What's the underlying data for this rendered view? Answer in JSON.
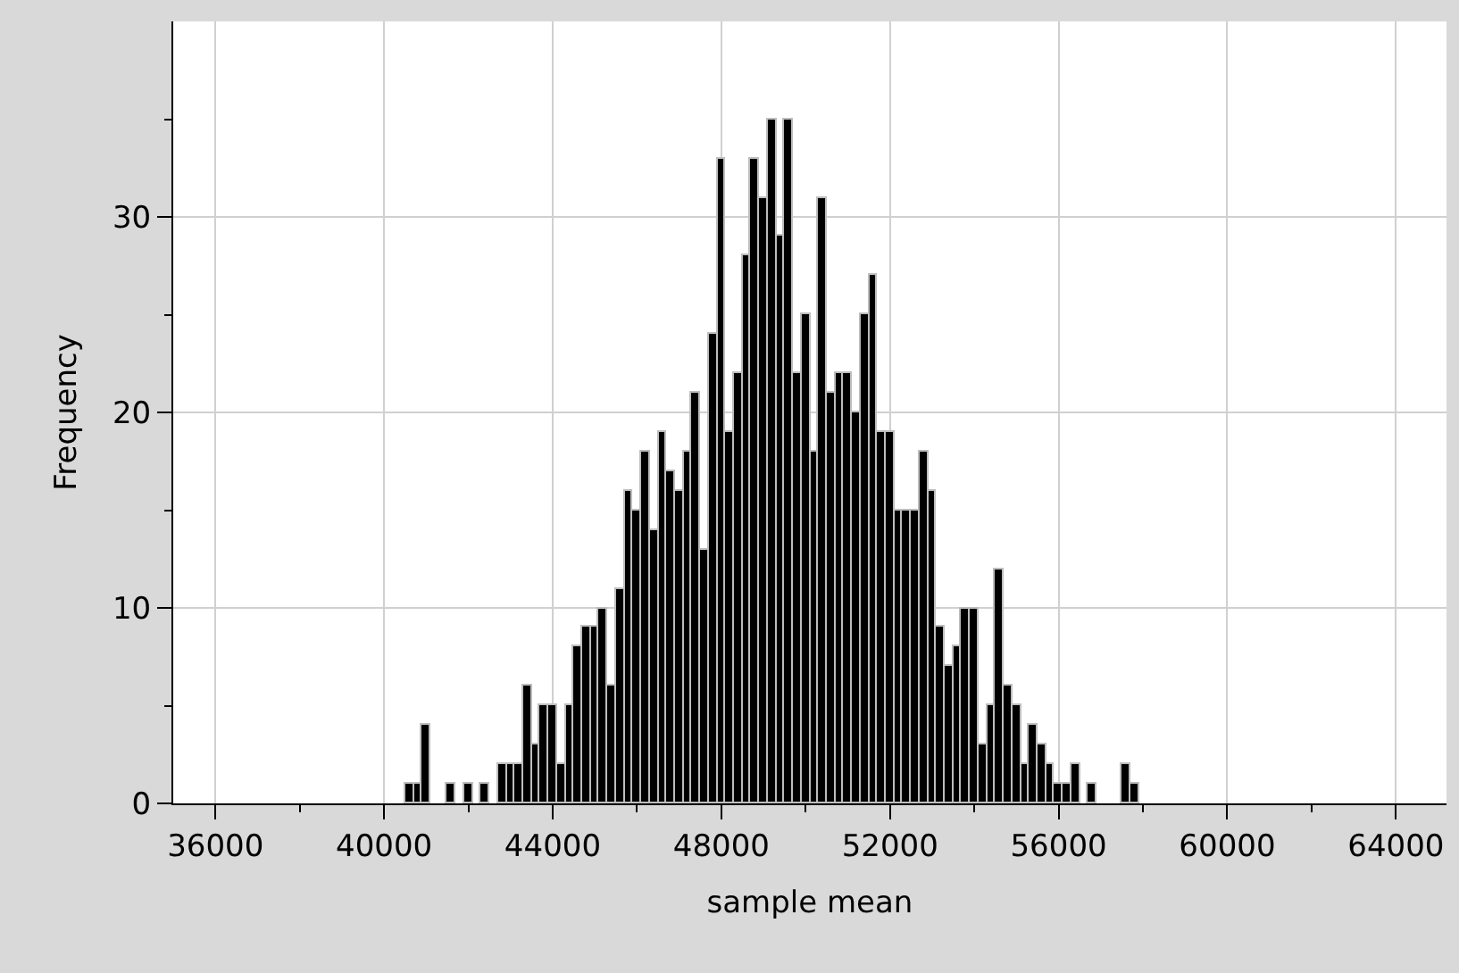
{
  "chart_data": {
    "type": "histogram",
    "xlabel": "sample mean",
    "ylabel": "Frequency",
    "bins": [
      40500,
      40700,
      40900,
      41100,
      41300,
      41500,
      41700,
      41900,
      42100,
      42300,
      42500,
      42700,
      42900,
      43100,
      43300,
      43500,
      43700,
      43900,
      44100,
      44300,
      44500,
      44700,
      44900,
      45100,
      45300,
      45500,
      45700,
      45900,
      46100,
      46300,
      46500,
      46700,
      46900,
      47100,
      47300,
      47500,
      47700,
      47900,
      48100,
      48300,
      48500,
      48700,
      48900,
      49100,
      49300,
      49500,
      49700,
      49900,
      50100,
      50300,
      50500,
      50700,
      50900,
      51100,
      51300,
      51500,
      51700,
      51900,
      52100,
      52300,
      52500,
      52700,
      52900,
      53100,
      53300,
      53500,
      53700,
      53900,
      54100,
      54300,
      54500,
      54700,
      54900,
      55100,
      55300,
      55500,
      55700,
      55900,
      56100,
      56300,
      56500,
      56700,
      56900,
      57100,
      57300,
      57500,
      57700,
      57900
    ],
    "values": [
      1,
      1,
      4,
      0,
      0,
      1,
      0,
      1,
      0,
      1,
      0,
      2,
      2,
      2,
      6,
      3,
      5,
      5,
      2,
      5,
      8,
      9,
      9,
      10,
      6,
      11,
      16,
      15,
      18,
      14,
      19,
      17,
      16,
      18,
      21,
      13,
      24,
      33,
      19,
      22,
      28,
      33,
      31,
      35,
      29,
      35,
      22,
      25,
      18,
      31,
      21,
      22,
      22,
      20,
      25,
      27,
      19,
      19,
      15,
      15,
      15,
      18,
      16,
      9,
      7,
      8,
      10,
      10,
      3,
      5,
      12,
      6,
      5,
      2,
      4,
      3,
      2,
      1,
      1,
      2,
      0,
      1,
      0,
      0,
      0,
      2,
      1
    ],
    "color": "#000000",
    "xlim": [
      35000,
      65200
    ],
    "xticks": [
      36000,
      {
        "value": 38000,
        "label": null
      },
      40000,
      {
        "value": 42000,
        "label": null
      },
      44000,
      {
        "value": 46000,
        "label": null
      },
      48000,
      {
        "value": 50000,
        "label": null
      },
      52000,
      {
        "value": 54000,
        "label": null
      },
      56000,
      {
        "value": 58000,
        "label": null
      },
      60000,
      {
        "value": 62000,
        "label": null
      },
      64000
    ],
    "ylim": [
      0,
      40
    ],
    "yticks": [
      0,
      {
        "value": 5,
        "label": null
      },
      10,
      {
        "value": 15,
        "label": null
      },
      20,
      {
        "value": 25,
        "label": null
      },
      30,
      {
        "value": 35,
        "label": null
      }
    ],
    "grid": true
  }
}
